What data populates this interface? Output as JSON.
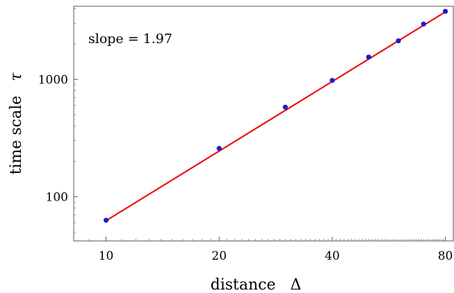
{
  "chart_data": {
    "type": "scatter",
    "x_scale": "log",
    "y_scale": "log",
    "xlabel": "distance",
    "xlabel_symbol": "Δ",
    "ylabel": "time scale",
    "ylabel_symbol": "τ",
    "xlim": [
      8.2,
      84
    ],
    "ylim": [
      42,
      4200
    ],
    "x_ticks": [
      10,
      20,
      40,
      80
    ],
    "x_tick_labels": [
      "10",
      "20",
      "40",
      "80"
    ],
    "y_ticks": [
      100,
      1000
    ],
    "y_tick_labels": [
      "100",
      "1000"
    ],
    "grid": false,
    "series": [
      {
        "type": "scatter",
        "color": "#1a1ad6",
        "x": [
          10,
          20,
          30,
          40,
          50,
          60,
          70,
          80
        ],
        "y": [
          63,
          258,
          580,
          980,
          1550,
          2130,
          2960,
          3800
        ]
      },
      {
        "type": "line",
        "color": "#ee1111",
        "slope": 1.97,
        "x": [
          10,
          80
        ],
        "y": [
          62.5,
          3760
        ]
      }
    ],
    "annotation": "slope = 1.97"
  }
}
